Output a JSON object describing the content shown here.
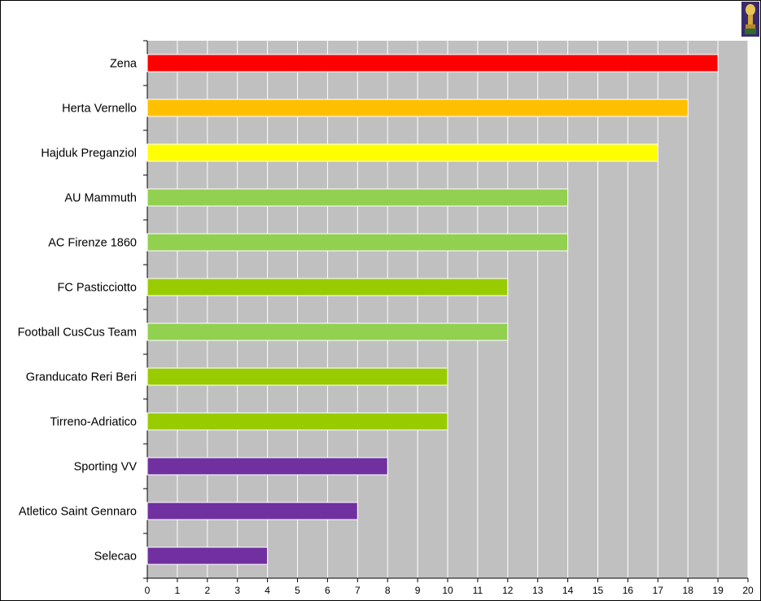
{
  "chart_data": {
    "type": "bar",
    "orientation": "horizontal",
    "categories": [
      "Zena",
      "Herta Vernello",
      "Hajduk Preganziol",
      "AU Mammuth",
      "AC Firenze 1860",
      "FC Pasticciotto",
      "Football CusCus Team",
      "Granducato Reri Beri",
      "Tirreno-Adriatico",
      "Sporting VV",
      "Atletico Saint Gennaro",
      "Selecao"
    ],
    "values": [
      19,
      18,
      17,
      14,
      14,
      12,
      12,
      10,
      10,
      8,
      7,
      4
    ],
    "bar_colors": [
      "#ff0000",
      "#ffc000",
      "#ffff00",
      "#92d050",
      "#92d050",
      "#99cc00",
      "#92d050",
      "#99cc00",
      "#99cc00",
      "#7030a0",
      "#7030a0",
      "#7030a0"
    ],
    "xlim": [
      0,
      20
    ],
    "xticks": [
      "0",
      "1",
      "2",
      "3",
      "4",
      "5",
      "6",
      "7",
      "8",
      "9",
      "10",
      "11",
      "12",
      "13",
      "14",
      "15",
      "16",
      "17",
      "18",
      "19",
      "20"
    ],
    "grid": true,
    "plot_background": "#c0c0c0",
    "gridline_color": "#ffffff"
  },
  "icons": {
    "corner": "trophy-icon"
  }
}
